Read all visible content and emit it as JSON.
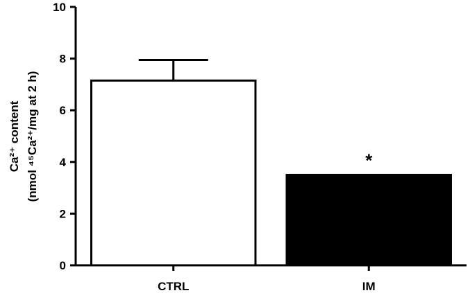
{
  "chart_data": {
    "type": "bar",
    "categories": [
      "CTRL",
      "IM"
    ],
    "values": [
      7.15,
      3.5
    ],
    "error": [
      0.8,
      0
    ],
    "colors": [
      "#ffffff",
      "#000000"
    ],
    "edge_color": "#000000",
    "ylim": [
      0,
      10
    ],
    "yticks": [
      0,
      2,
      4,
      6,
      8,
      10
    ],
    "ylabel_line1": "Ca²⁺ content",
    "ylabel_line2": "(nmol ⁴⁵Ca²⁺/mg at 2 h)",
    "annotations": [
      {
        "category": "IM",
        "text": "*"
      }
    ],
    "grid": false,
    "legend": "none"
  }
}
